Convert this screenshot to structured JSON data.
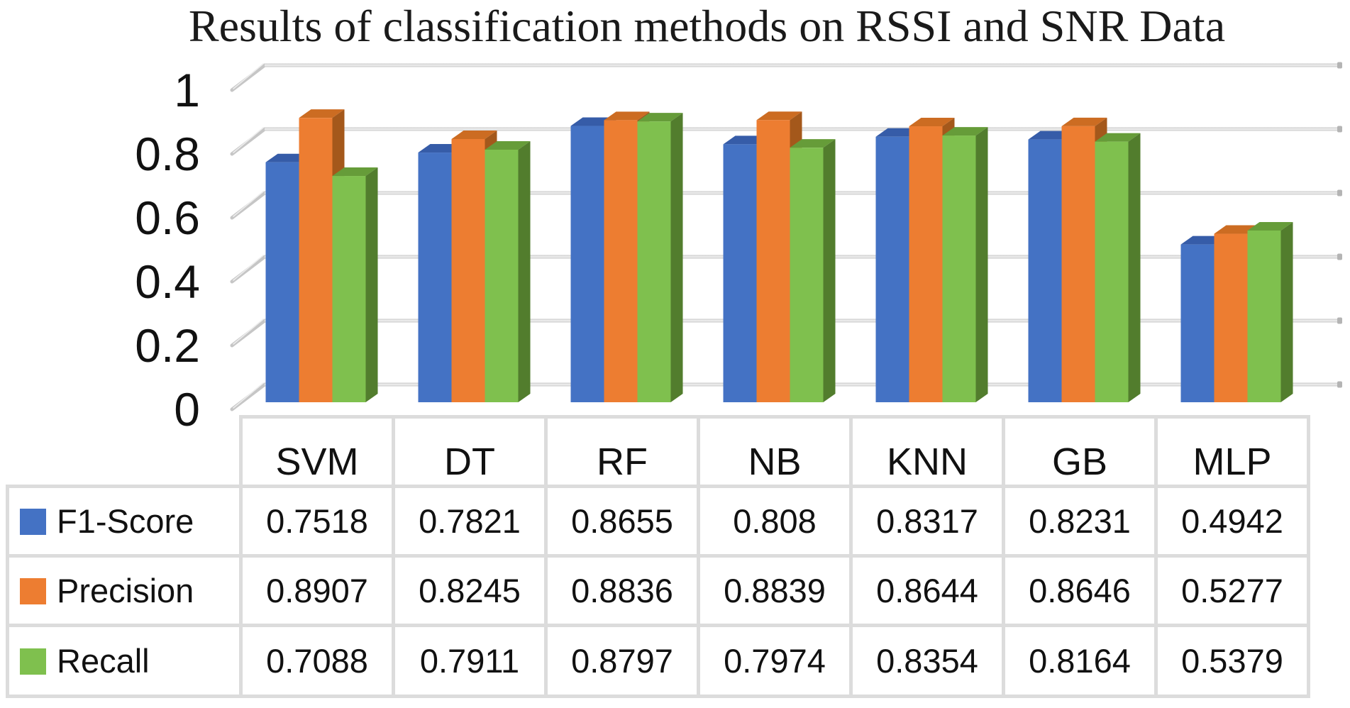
{
  "title": "Results of classification methods on RSSI and SNR Data",
  "colors": {
    "grid_tube": "#c6c6c6",
    "grid_tube_light": "#f2f2f2",
    "grid_cap": "#b4b4b4",
    "table_border": "#dcdcdc",
    "text": "#141414"
  },
  "chart_data": {
    "type": "bar",
    "projection": "3d-clustered-column",
    "title": "Results of classification methods on RSSI and SNR Data",
    "categories": [
      "SVM",
      "DT",
      "RF",
      "NB",
      "KNN",
      "GB",
      "MLP"
    ],
    "series": [
      {
        "name": "F1-Score",
        "color": "#4472C4",
        "color_top": "#365CA8",
        "color_side": "#2A4A80",
        "values": [
          0.7518,
          0.7821,
          0.8655,
          0.808,
          0.8317,
          0.8231,
          0.4942
        ]
      },
      {
        "name": "Precision",
        "color": "#ED7D31",
        "color_top": "#CC6C22",
        "color_side": "#A4581B",
        "values": [
          0.8907,
          0.8245,
          0.8836,
          0.8839,
          0.8644,
          0.8646,
          0.5277
        ]
      },
      {
        "name": "Recall",
        "color": "#7FC04E",
        "color_top": "#669C39",
        "color_side": "#527D2D",
        "values": [
          0.7088,
          0.7911,
          0.8797,
          0.7974,
          0.8354,
          0.8164,
          0.5379
        ]
      }
    ],
    "ylim": [
      0,
      1
    ],
    "yticks": [
      {
        "value": 1,
        "label": "1"
      },
      {
        "value": 0.8,
        "label": "0.8"
      },
      {
        "value": 0.6,
        "label": "0.6"
      },
      {
        "value": 0.4,
        "label": "0.4"
      },
      {
        "value": 0.2,
        "label": "0.2"
      },
      {
        "value": 0,
        "label": "0"
      }
    ],
    "grid": true,
    "legend_position": "table-left-column",
    "data_table_shown": true
  }
}
